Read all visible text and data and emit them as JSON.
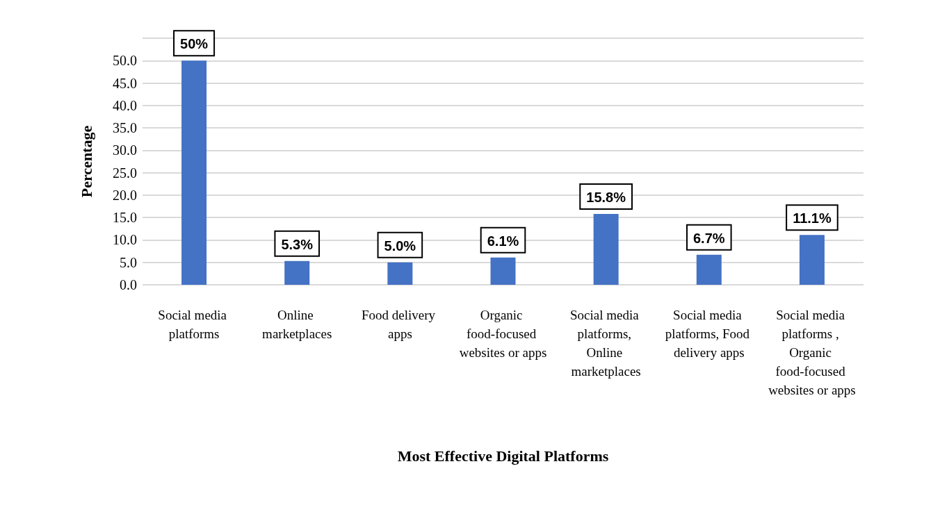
{
  "chart_data": {
    "type": "bar",
    "xlabel": "Most Effective Digital Platforms",
    "ylabel": "Percentage",
    "categories": [
      "Social media platforms",
      "Online marketplaces",
      "Food delivery apps",
      "Organic food-focused websites or apps",
      "Social media platforms, Online marketplaces",
      "Social media platforms, Food delivery apps",
      "Social media platforms , Organic food-focused websites or apps"
    ],
    "values": [
      50,
      5.3,
      5.0,
      6.1,
      15.8,
      6.7,
      11.1
    ],
    "value_labels": [
      "50%",
      "5.3%",
      "5.0%",
      "6.1%",
      "15.8%",
      "6.7%",
      "11.1%"
    ],
    "color": "#4472c4",
    "ylim": [
      0,
      55
    ],
    "yticks": [
      {
        "value": 0,
        "label": "0.0"
      },
      {
        "value": 5,
        "label": "5.0"
      },
      {
        "value": 10,
        "label": "10.0"
      },
      {
        "value": 15,
        "label": "15.0"
      },
      {
        "value": 20,
        "label": "20.0"
      },
      {
        "value": 25,
        "label": "25.0"
      },
      {
        "value": 30,
        "label": "30.0"
      },
      {
        "value": 35,
        "label": "35.0"
      },
      {
        "value": 40,
        "label": "40.0"
      },
      {
        "value": 45,
        "label": "45.0"
      },
      {
        "value": 50,
        "label": "50.0"
      },
      {
        "value": 55,
        "label": null
      }
    ],
    "grid": "y"
  }
}
